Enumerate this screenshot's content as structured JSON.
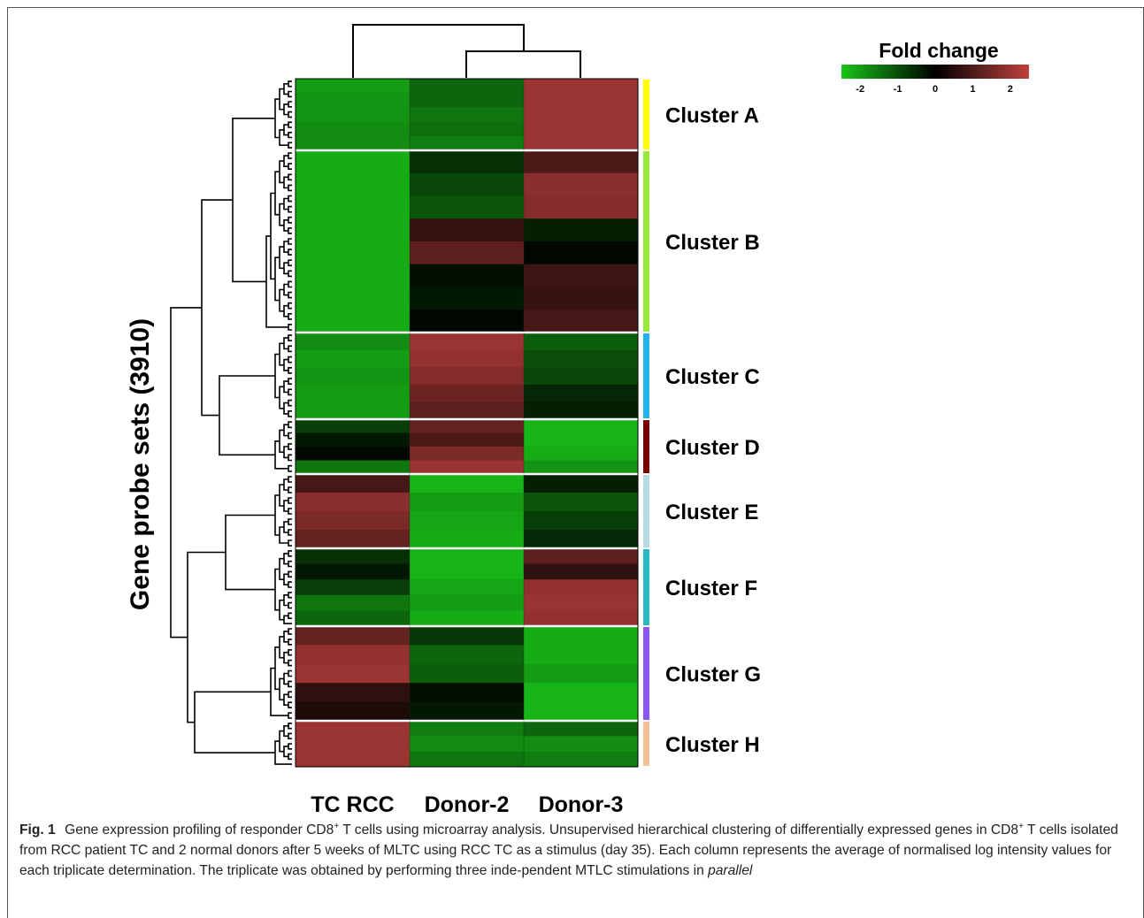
{
  "chart_data": {
    "type": "heatmap",
    "ylabel": "Gene probe sets (3910)",
    "columns": [
      "TC RCC",
      "Donor-2",
      "Donor-3"
    ],
    "legend": {
      "title": "Fold change",
      "ticks": [
        "-2",
        "-1",
        "0",
        "1",
        "2"
      ],
      "tick_values": [
        -2,
        -1,
        0,
        1,
        2
      ],
      "range": [
        -2.5,
        2.5
      ],
      "low_color": "#19c419",
      "mid_color": "#000000",
      "high_color": "#c0413e",
      "placement": "top-right"
    },
    "clusters": [
      {
        "name": "Cluster A",
        "color": "#ffff00",
        "bands": [
          [
            -2.0,
            -1.3,
            2.0
          ],
          [
            -1.9,
            -1.3,
            2.0
          ],
          [
            -1.9,
            -1.5,
            2.0
          ],
          [
            -1.8,
            -1.4,
            2.0
          ],
          [
            -1.8,
            -1.6,
            2.0
          ]
        ]
      },
      {
        "name": "Cluster B",
        "color": "#9be83c",
        "bands": [
          [
            -2.2,
            -0.6,
            1.0
          ],
          [
            -2.2,
            -0.9,
            1.8
          ],
          [
            -2.2,
            -1.1,
            1.7
          ],
          [
            -2.2,
            0.7,
            -0.4
          ],
          [
            -2.2,
            1.2,
            -0.1
          ],
          [
            -2.2,
            -0.2,
            0.8
          ],
          [
            -2.2,
            -0.3,
            0.7
          ],
          [
            -2.2,
            -0.1,
            0.9
          ]
        ]
      },
      {
        "name": "Cluster C",
        "color": "#1fb2ec",
        "bands": [
          [
            -1.8,
            2.0,
            -1.2
          ],
          [
            -2.0,
            1.9,
            -1.0
          ],
          [
            -1.9,
            1.7,
            -0.9
          ],
          [
            -2.0,
            1.4,
            -0.5
          ],
          [
            -2.0,
            1.2,
            -0.4
          ]
        ]
      },
      {
        "name": "Cluster D",
        "color": "#7a0000",
        "bands": [
          [
            -0.8,
            1.3,
            -2.3
          ],
          [
            -0.3,
            1.0,
            -2.3
          ],
          [
            -0.1,
            1.6,
            -2.2
          ],
          [
            -1.5,
            2.0,
            -1.9
          ]
        ]
      },
      {
        "name": "Cluster E",
        "color": "#b6dbe3",
        "bands": [
          [
            0.9,
            -2.3,
            -0.4
          ],
          [
            1.8,
            -2.0,
            -1.1
          ],
          [
            1.6,
            -2.1,
            -0.8
          ],
          [
            1.3,
            -2.2,
            -0.5
          ]
        ]
      },
      {
        "name": "Cluster F",
        "color": "#28b8c6",
        "bands": [
          [
            -0.6,
            -2.3,
            1.2
          ],
          [
            -0.3,
            -2.3,
            0.6
          ],
          [
            -0.8,
            -2.1,
            1.9
          ],
          [
            -1.5,
            -2.0,
            2.0
          ],
          [
            -1.3,
            -2.2,
            1.9
          ]
        ]
      },
      {
        "name": "Cluster G",
        "color": "#8a55f1",
        "bands": [
          [
            1.3,
            -0.7,
            -2.2
          ],
          [
            1.9,
            -1.3,
            -2.2
          ],
          [
            2.0,
            -1.2,
            -2.0
          ],
          [
            0.6,
            -0.2,
            -2.3
          ],
          [
            0.4,
            -0.3,
            -2.3
          ]
        ]
      },
      {
        "name": "Cluster H",
        "color": "#f6c196",
        "bands": [
          [
            2.0,
            -1.6,
            -1.3
          ],
          [
            2.0,
            -1.8,
            -1.8
          ],
          [
            2.0,
            -1.5,
            -1.6
          ]
        ]
      }
    ]
  },
  "caption": {
    "label": "Fig. 1",
    "text_1": "Gene expression profiling of responder CD8",
    "sup_1": "+",
    "text_2": " T cells using microarray analysis. Unsupervised hierarchical clustering of differentially expressed genes in CD8",
    "sup_2": "+",
    "text_3": " T cells isolated from RCC patient TC and 2 normal donors after 5 weeks of MLTC using RCC TC as a stimulus (day 35). Each column represents the average of normalised log intensity values for each triplicate determination. The triplicate was obtained by performing three inde-pendent MTLC stimulations in ",
    "italic": "parallel"
  }
}
